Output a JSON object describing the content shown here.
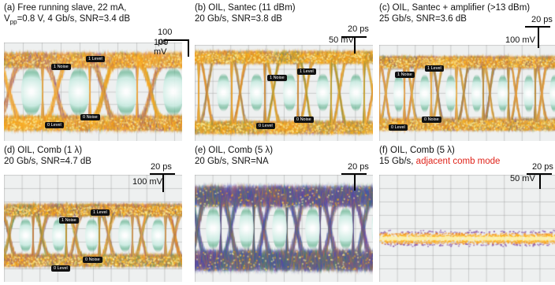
{
  "panels": [
    {
      "id": "a",
      "cap1": "(a) Free running slave, 22 mA,",
      "cap2_pre": "V",
      "cap2_sub": "pp",
      "cap2_post": "=0.8 V, 4 Gb/s, SNR=3.4 dB",
      "cap2_red": "",
      "time": "100 ps",
      "volt": "100 mV",
      "tags": {
        "l1": "1 Level",
        "n1": "1 Noise",
        "n0": "0 Noise",
        "l0": "0 Level"
      }
    },
    {
      "id": "b",
      "cap1": "(b) OIL, Santec (11 dBm)",
      "cap2_pre": "20 Gb/s, SNR=3.8 dB",
      "cap2_sub": "",
      "cap2_post": "",
      "cap2_red": "",
      "time": "20 ps",
      "volt": "50 mV",
      "tags": {
        "l1": "1 Level",
        "n1": "1 Noise",
        "n0": "0 Noise",
        "l0": "0 Level"
      }
    },
    {
      "id": "c",
      "cap1": "(c) OIL, Santec + amplifier (>13 dBm)",
      "cap2_pre": "25 Gb/s, SNR=3.6 dB",
      "cap2_sub": "",
      "cap2_post": "",
      "cap2_red": "",
      "time": "20 ps",
      "volt": "100 mV",
      "tags": {
        "l1": "1 Level",
        "n1": "1 Noise",
        "n0": "0 Noise",
        "l0": "0 Level"
      }
    },
    {
      "id": "d",
      "cap1": "(d) OIL, Comb (1 λ)",
      "cap2_pre": "20 Gb/s, SNR=4.7 dB",
      "cap2_sub": "",
      "cap2_post": "",
      "cap2_red": "",
      "time": "20 ps",
      "volt": "100 mV",
      "tags": {
        "l1": "1 Level",
        "n1": "1 Noise",
        "n0": "0 Noise",
        "l0": "0 Level"
      }
    },
    {
      "id": "e",
      "cap1": "(e) OIL, Comb (5 λ)",
      "cap2_pre": "20 Gb/s, SNR=NA",
      "cap2_sub": "",
      "cap2_post": "",
      "cap2_red": "",
      "time": "20 ps",
      "volt": "",
      "tags": null
    },
    {
      "id": "f",
      "cap1": "(f) OIL, Comb (5 λ)",
      "cap2_pre": "15 Gb/s, ",
      "cap2_sub": "",
      "cap2_post": "",
      "cap2_red": "adjacent comb mode",
      "time": "20 ps",
      "volt": "50 mV",
      "tags": null
    }
  ],
  "colors": {
    "hot": "#fff2a0",
    "warm": "#ffb21a",
    "mid": "#f08a1e",
    "cool": "#7b3fa0",
    "cold": "#2a4bd0",
    "green": "#3f9a55",
    "red": "#e0241b"
  }
}
